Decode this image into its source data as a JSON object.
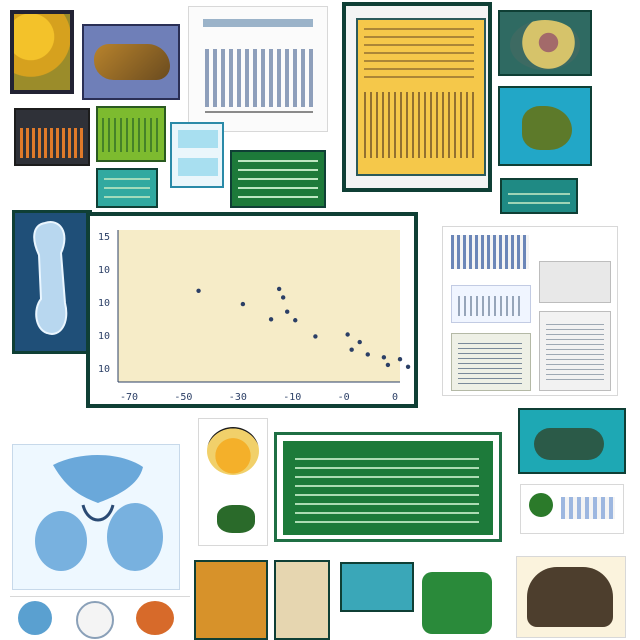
{
  "colors": {
    "frame": "#0f3f35",
    "plot_bg": "#f6ecc8",
    "points": "#2b3f66",
    "green_panel": "#1d7a3a",
    "teal": "#3aa7b8"
  },
  "icons": [
    "bone-illustration",
    "skull-illustration",
    "lung-illustration",
    "shell-illustration"
  ],
  "chart_data": {
    "type": "scatter",
    "title": "",
    "xlabel": "",
    "ylabel": "",
    "xlim": [
      -70,
      0
    ],
    "ylim": [
      0,
      16
    ],
    "x_ticks": [
      "-70",
      "-50",
      "-30",
      "-10",
      "-0",
      "0"
    ],
    "y_ticks": [
      "15",
      "10",
      "10",
      "10",
      "10"
    ],
    "points": [
      {
        "x": -50,
        "y": 9.6
      },
      {
        "x": -39,
        "y": 8.2
      },
      {
        "x": -30,
        "y": 9.8
      },
      {
        "x": -29,
        "y": 8.9
      },
      {
        "x": -28,
        "y": 7.4
      },
      {
        "x": -32,
        "y": 6.6
      },
      {
        "x": -26,
        "y": 6.5
      },
      {
        "x": -21,
        "y": 4.8
      },
      {
        "x": -13,
        "y": 5.0
      },
      {
        "x": -10,
        "y": 4.2
      },
      {
        "x": -12,
        "y": 3.4
      },
      {
        "x": -8,
        "y": 2.9
      },
      {
        "x": -4,
        "y": 2.6
      },
      {
        "x": 0,
        "y": 2.4
      },
      {
        "x": -3,
        "y": 1.8
      },
      {
        "x": 2,
        "y": 1.6
      }
    ]
  }
}
